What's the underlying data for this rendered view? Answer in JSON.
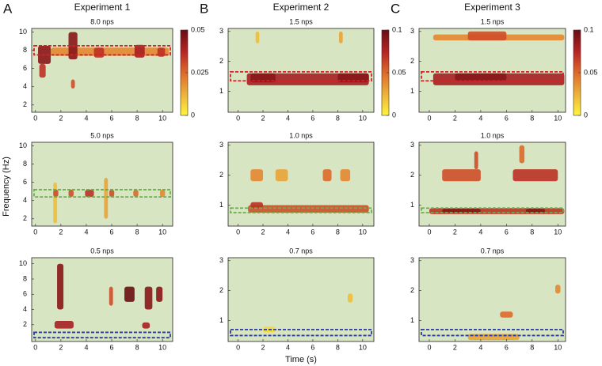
{
  "y_label": "Frequency (Hz)",
  "x_label": "Time (s)",
  "background": "#d8e5c3",
  "colormap": [
    "#fff43a",
    "#ecb23a",
    "#de6a2a",
    "#b52325",
    "#6a0e12"
  ],
  "columns": [
    {
      "letter": "A",
      "title": "Experiment 1",
      "colorbar": {
        "lim": [
          0,
          0.05
        ],
        "ticks": [
          0,
          0.025,
          0.05
        ]
      }
    },
    {
      "letter": "B",
      "title": "Experiment 2",
      "colorbar": {
        "lim": [
          0,
          0.1
        ],
        "ticks": [
          0,
          0.05,
          0.1
        ]
      }
    },
    {
      "letter": "C",
      "title": "Experiment 3",
      "colorbar": {
        "lim": [
          0,
          0.1
        ],
        "ticks": [
          0,
          0.05,
          0.1
        ]
      }
    }
  ],
  "chart_data": [
    {
      "type": "heatmap",
      "title": "8.0 nps",
      "xlim": [
        -0.3,
        10.8
      ],
      "ylim": [
        1.2,
        10.4
      ],
      "xticks": [
        0,
        2,
        4,
        6,
        8,
        10
      ],
      "yticks": [
        2,
        4,
        6,
        8,
        10
      ],
      "band": [
        7.5,
        8.5
      ],
      "band_color": "#d62027",
      "spots": [
        {
          "t": [
            1.2,
            10.5
          ],
          "f": [
            7.4,
            8.3
          ],
          "v": 0.02
        },
        {
          "t": [
            0.2,
            1.2
          ],
          "f": [
            6.5,
            8.5
          ],
          "v": 0.045
        },
        {
          "t": [
            0.3,
            0.8
          ],
          "f": [
            5,
            6.5
          ],
          "v": 0.035
        },
        {
          "t": [
            2.6,
            3.3
          ],
          "f": [
            7,
            10
          ],
          "v": 0.045
        },
        {
          "t": [
            2.8,
            3.1
          ],
          "f": [
            3.8,
            4.8
          ],
          "v": 0.03
        },
        {
          "t": [
            4.6,
            5.4
          ],
          "f": [
            7.2,
            8.3
          ],
          "v": 0.035
        },
        {
          "t": [
            7.8,
            8.6
          ],
          "f": [
            7.2,
            8.6
          ],
          "v": 0.04
        },
        {
          "t": [
            9.6,
            10.2
          ],
          "f": [
            7.3,
            8.3
          ],
          "v": 0.035
        }
      ]
    },
    {
      "type": "heatmap",
      "title": "5.0 nps",
      "xlim": [
        -0.3,
        10.8
      ],
      "ylim": [
        1.2,
        10.4
      ],
      "xticks": [
        0,
        2,
        4,
        6,
        8,
        10
      ],
      "yticks": [
        2,
        4,
        6,
        8,
        10
      ],
      "band": [
        4.4,
        5.2
      ],
      "band_color": "#6ab04c",
      "spots": [
        {
          "t": [
            1.4,
            1.7
          ],
          "f": [
            1.5,
            6
          ],
          "v": 0.01
        },
        {
          "t": [
            5.4,
            5.7
          ],
          "f": [
            2,
            6.5
          ],
          "v": 0.015
        },
        {
          "t": [
            1.4,
            1.8
          ],
          "f": [
            4.4,
            5.2
          ],
          "v": 0.03
        },
        {
          "t": [
            2.6,
            3
          ],
          "f": [
            4.4,
            5.2
          ],
          "v": 0.03
        },
        {
          "t": [
            3.9,
            4.6
          ],
          "f": [
            4.4,
            5.2
          ],
          "v": 0.035
        },
        {
          "t": [
            5.8,
            6.2
          ],
          "f": [
            4.4,
            5.2
          ],
          "v": 0.03
        },
        {
          "t": [
            7.7,
            8.1
          ],
          "f": [
            4.4,
            5.2
          ],
          "v": 0.025
        },
        {
          "t": [
            9.8,
            10.2
          ],
          "f": [
            4.4,
            5.2
          ],
          "v": 0.02
        }
      ]
    },
    {
      "type": "heatmap",
      "title": "0.5 nps",
      "xlim": [
        -0.3,
        10.8
      ],
      "ylim": [
        -0.2,
        10.8
      ],
      "xticks": [
        0,
        2,
        4,
        6,
        8,
        10
      ],
      "yticks": [
        2,
        4,
        6,
        8,
        10
      ],
      "band": [
        0.3,
        1
      ],
      "band_color": "#2b3a9b",
      "spots": [
        {
          "t": [
            1.5,
            3
          ],
          "f": [
            1.5,
            2.5
          ],
          "v": 0.04
        },
        {
          "t": [
            1.7,
            2.2
          ],
          "f": [
            4,
            10
          ],
          "v": 0.045
        },
        {
          "t": [
            5.8,
            6.1
          ],
          "f": [
            4.5,
            7
          ],
          "v": 0.03
        },
        {
          "t": [
            7,
            7.8
          ],
          "f": [
            5,
            7
          ],
          "v": 0.05
        },
        {
          "t": [
            8.6,
            9.2
          ],
          "f": [
            4,
            7
          ],
          "v": 0.045
        },
        {
          "t": [
            9.5,
            10
          ],
          "f": [
            5,
            7
          ],
          "v": 0.045
        },
        {
          "t": [
            8.4,
            9
          ],
          "f": [
            1.5,
            2.3
          ],
          "v": 0.04
        }
      ]
    },
    {
      "type": "heatmap",
      "title": "1.5 nps",
      "xlim": [
        -0.8,
        10.9
      ],
      "ylim": [
        0.3,
        3.1
      ],
      "xticks": [
        0,
        2,
        4,
        6,
        8,
        10
      ],
      "yticks": [
        1,
        2,
        3
      ],
      "band": [
        1.35,
        1.65
      ],
      "band_color": "#d62027",
      "spots": [
        {
          "t": [
            0.7,
            10.5
          ],
          "f": [
            1.2,
            1.6
          ],
          "v": 0.08
        },
        {
          "t": [
            1,
            3
          ],
          "f": [
            1.3,
            1.6
          ],
          "v": 0.09
        },
        {
          "t": [
            8,
            10.5
          ],
          "f": [
            1.3,
            1.6
          ],
          "v": 0.09
        },
        {
          "t": [
            1.4,
            1.7
          ],
          "f": [
            2.6,
            3
          ],
          "v": 0.02
        },
        {
          "t": [
            8.1,
            8.4
          ],
          "f": [
            2.6,
            3
          ],
          "v": 0.03
        }
      ]
    },
    {
      "type": "heatmap",
      "title": "1.0 nps",
      "xlim": [
        -0.8,
        10.9
      ],
      "ylim": [
        0.3,
        3.1
      ],
      "xticks": [
        0,
        2,
        4,
        6,
        8,
        10
      ],
      "yticks": [
        1,
        2,
        3
      ],
      "band": [
        0.75,
        0.9
      ],
      "band_color": "#6ab04c",
      "spots": [
        {
          "t": [
            0.8,
            10.5
          ],
          "f": [
            0.75,
            1
          ],
          "v": 0.06
        },
        {
          "t": [
            1,
            2
          ],
          "f": [
            0.9,
            1.1
          ],
          "v": 0.07
        },
        {
          "t": [
            1,
            2
          ],
          "f": [
            1.8,
            2.2
          ],
          "v": 0.04
        },
        {
          "t": [
            3,
            4
          ],
          "f": [
            1.8,
            2.2
          ],
          "v": 0.03
        },
        {
          "t": [
            6.8,
            7.5
          ],
          "f": [
            1.8,
            2.2
          ],
          "v": 0.05
        },
        {
          "t": [
            8.2,
            9
          ],
          "f": [
            1.8,
            2.2
          ],
          "v": 0.04
        }
      ]
    },
    {
      "type": "heatmap",
      "title": "0.7 nps",
      "xlim": [
        -0.8,
        10.9
      ],
      "ylim": [
        0.3,
        3.1
      ],
      "xticks": [
        0,
        2,
        4,
        6,
        8,
        10
      ],
      "yticks": [
        1,
        2,
        3
      ],
      "band": [
        0.5,
        0.7
      ],
      "band_color": "#2b3a9b",
      "spots": [
        {
          "t": [
            2,
            3
          ],
          "f": [
            0.6,
            0.8
          ],
          "v": 0.01
        },
        {
          "t": [
            8.8,
            9.2
          ],
          "f": [
            1.6,
            1.9
          ],
          "v": 0.02
        }
      ]
    },
    {
      "type": "heatmap",
      "title": "1.5 nps",
      "xlim": [
        -0.8,
        10.6
      ],
      "ylim": [
        0.3,
        3.1
      ],
      "xticks": [
        0,
        2,
        4,
        6,
        8,
        10
      ],
      "yticks": [
        1,
        2,
        3
      ],
      "band": [
        1.35,
        1.65
      ],
      "band_color": "#d62027",
      "spots": [
        {
          "t": [
            0.3,
            10.5
          ],
          "f": [
            1.2,
            1.6
          ],
          "v": 0.08
        },
        {
          "t": [
            2,
            6
          ],
          "f": [
            1.35,
            1.6
          ],
          "v": 0.09
        },
        {
          "t": [
            0.3,
            10.5
          ],
          "f": [
            2.7,
            2.9
          ],
          "v": 0.04
        },
        {
          "t": [
            3,
            6
          ],
          "f": [
            2.7,
            3
          ],
          "v": 0.06
        }
      ]
    },
    {
      "type": "heatmap",
      "title": "1.0 nps",
      "xlim": [
        -0.8,
        10.6
      ],
      "ylim": [
        0.3,
        3.1
      ],
      "xticks": [
        0,
        2,
        4,
        6,
        8,
        10
      ],
      "yticks": [
        1,
        2,
        3
      ],
      "band": [
        0.75,
        0.9
      ],
      "band_color": "#6ab04c",
      "spots": [
        {
          "t": [
            0,
            10.5
          ],
          "f": [
            0.7,
            0.9
          ],
          "v": 0.07
        },
        {
          "t": [
            1,
            4
          ],
          "f": [
            0.75,
            0.88
          ],
          "v": 0.09
        },
        {
          "t": [
            7.5,
            9
          ],
          "f": [
            0.75,
            0.88
          ],
          "v": 0.09
        },
        {
          "t": [
            1,
            4
          ],
          "f": [
            1.8,
            2.2
          ],
          "v": 0.06
        },
        {
          "t": [
            6.5,
            10
          ],
          "f": [
            1.8,
            2.2
          ],
          "v": 0.07
        },
        {
          "t": [
            3.5,
            3.8
          ],
          "f": [
            2.2,
            2.8
          ],
          "v": 0.06
        },
        {
          "t": [
            7,
            7.4
          ],
          "f": [
            2.4,
            3
          ],
          "v": 0.05
        }
      ]
    },
    {
      "type": "heatmap",
      "title": "0.7 nps",
      "xlim": [
        -0.8,
        10.6
      ],
      "ylim": [
        0.3,
        3.1
      ],
      "xticks": [
        0,
        2,
        4,
        6,
        8,
        10
      ],
      "yticks": [
        1,
        2,
        3
      ],
      "band": [
        0.5,
        0.7
      ],
      "band_color": "#2b3a9b",
      "spots": [
        {
          "t": [
            3,
            7
          ],
          "f": [
            0.35,
            0.55
          ],
          "v": 0.03
        },
        {
          "t": [
            5.5,
            6.5
          ],
          "f": [
            1.1,
            1.3
          ],
          "v": 0.05
        },
        {
          "t": [
            9.8,
            10.2
          ],
          "f": [
            1.9,
            2.2
          ],
          "v": 0.04
        }
      ]
    }
  ]
}
